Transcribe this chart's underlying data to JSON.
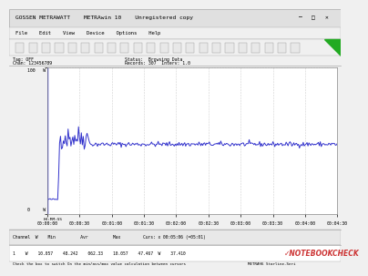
{
  "title": "GOSSEN METRAWATT    METRAwin 10    Unregistered copy",
  "tag": "Tag: OFF",
  "chan": "Chan: 123456789",
  "status": "Status:  Browsing Data",
  "records": "Records: 307  Interv: 1.0",
  "x_ticks": [
    "00:00:00",
    "00:00:30",
    "00:01:00",
    "00:01:30",
    "00:02:00",
    "00:02:30",
    "00:03:00",
    "00:03:30",
    "00:04:00",
    "00:04:30"
  ],
  "bottom_left": "Check the box to switch On the min/avs/max value calculation between cursors",
  "bottom_right": "METRAH6 Starline-Seri",
  "cursor_label": "Curs: x 00:05:06 (=05:01)",
  "bg_color": "#f0f0f0",
  "plot_bg": "#ffffff",
  "line_color": "#3333cc",
  "grid_color": "#cccccc",
  "ymax": 100,
  "ymin": 0,
  "xmax": 270,
  "spike_peak": 62,
  "steady_value": 47.5,
  "idle_value": 10
}
